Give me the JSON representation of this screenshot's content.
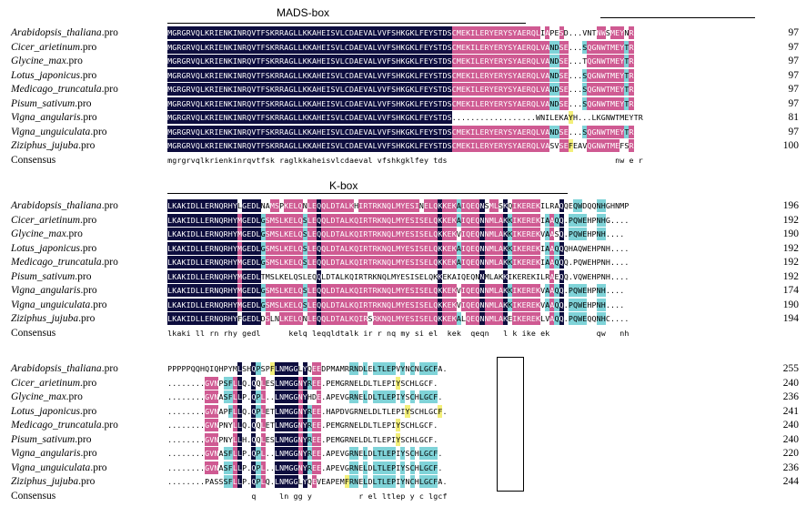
{
  "domains": {
    "mads_label": "MADS-box",
    "k_label": "K-box"
  },
  "consensus_label": "Consensus",
  "blocks": [
    {
      "rows": [
        {
          "name": "Arabidopsis_thaliana",
          "ext": ".pro",
          "seq": "MGRGRVQLKRIENKINRQVTFSKRRAGLLKKAHEISVLCDAEVALVVFSHKGKLFEYSTDSCMEKILERYERYSYAERQLIAPESD...VNTNWSMEYNR",
          "num": "97"
        },
        {
          "name": "Cicer_arietinum",
          "ext": ".pro",
          "seq": "MGRGRVQLKRIENKINRQVTFSKRRAGLLKKAHEISVLCDAEVALVVFSHKGKLFEYSTDSCMEKILERYERYSYAERQLVANDSE...SQGNWTMEYTR",
          "num": "97"
        },
        {
          "name": "Glycine_max",
          "ext": ".pro",
          "seq": "MGRGRVQLKRIENKINRQVTFSKRRAGLLKKAHEISVLCDAEVALVVFSHKGKLFEYSTDSCMEKILERYERYSYAERQLVANDSE...TQGNWTMEYTR",
          "num": "97"
        },
        {
          "name": "Lotus_japonicus",
          "ext": ".pro",
          "seq": "MGRGRVQLKRIENKINRQVTFSKRRAGLLKKAHEISVLCDAEVALVVFSHKGKLFEYSTDSCMEKILERYERYSYAERQLVANDSE...SQGNWTMEYTR",
          "num": "97"
        },
        {
          "name": "Medicago_truncatula",
          "ext": ".pro",
          "seq": "MGRGRVQLKRIENKINRQVTFSKRRAGLLKKAHEISVLCDAEVALVVFSHKGKLFEYSTDSCMEKILERYERYSYAERQLVANDSE...SQGNWTMEYTR",
          "num": "97"
        },
        {
          "name": "Pisum_sativum",
          "ext": ".pro",
          "seq": "MGRGRVQLKRIENKINRQVTFSKRRAGLLKKAHEISVLCDAEVALVVFSHKGKLFEYSTDSCMEKILERYERYSYAERQLVANDSE...SQGNWTMEYTR",
          "num": "97"
        },
        {
          "name": "Vigna_angularis",
          "ext": ".pro",
          "seq": "MGRGRVQLKRIENKINRQVTFSKRRAGLLKKAHEISVLCDAEVALVVFSHKGKLFEYSTDS..................WNILEKAYH...LKGNWTMEYTR",
          "num": "81"
        },
        {
          "name": "Vigna_unguiculata",
          "ext": ".pro",
          "seq": "MGRGRVQLKRIENKINRQVTFSKRRAGLLKKAHEISVLCDAEVALVVFSHKGKLFEYSTDSCMEKILERYERYSYAERQLVANDSE...SQGNWTMEYTR",
          "num": "97"
        },
        {
          "name": "Ziziphus_jujuba",
          "ext": ".pro",
          "seq": "MGRGRVQLKRIENKINRQVTFSKRRAGLLKKAHEISVLCDAEVALVVFSHKGKLFEYSTDSCMEKILERYERYSYAERQLVASVSEFEAVQGNWTMEFSR",
          "num": "100"
        }
      ],
      "consensus": "mgrgrvqlkrienkinrqvtfsk raglkkaheisvlcdaeval vfshkgklfey tds                                    nw e r"
    },
    {
      "rows": [
        {
          "name": "Arabidopsis_thaliana",
          "ext": ".pro",
          "seq": "LKAKIDLLERNQRHYLGEDLNAMSPKELQNLEQQLDTALKHIRTRKNQLMYESINELQKKEKAIQEQNSMLSKQIKEREKILRAQQEQWDQQNHGHNMP",
          "num": "196"
        },
        {
          "name": "Cicer_arietinum",
          "ext": ".pro",
          "seq": "LKAKIDLLERNQRHYMGEDLGSMSLKELQSLEQQLDTALKQIRTRKNQLMYESISELQKKEKAIQEQNNMLAKKIKEREKIAAQQ.PQWEHPNHG....",
          "num": "192"
        },
        {
          "name": "Glycine_max",
          "ext": ".pro",
          "seq": "LKAKIDLLERNQRHYMGEDLGSMSLKELQSLEQQLDTALKQIRTRKNQLMYESISELQKKEKVIQEQNNMLAKKIKEREKVAASQ.PQWEHPNH....",
          "num": "190"
        },
        {
          "name": "Lotus_japonicus",
          "ext": ".pro",
          "seq": "LKAKIDLLERNQRHYMGEDLGSMSLKELQSLEQQLDTALKQIRTRKNQLMYESISELQKKEKAIQEQNNMLAKKIKEREKIAAQQQHAQWEHPNH....",
          "num": "192"
        },
        {
          "name": "Medicago_truncatula",
          "ext": ".pro",
          "seq": "LKAKIDLLERNQRHYMGEDLGSMSLKELQSLEQQLDTALKQIRTRKNQLMYESISELQKKEKAIQEQNNMLAKKIKEREKIAAQQQ.PQWEHPNH....",
          "num": "192"
        },
        {
          "name": "Pisum_sativum",
          "ext": ".pro",
          "seq": "LKAKIDLLERNQRHYMGEDLTMSLKELQSLEQQLDTALKQIRTRKNQLMYESISELQKKEKAIQEQNNMLAKKIKEREKILRAEQQ.VQWEHPNH....",
          "num": "192"
        },
        {
          "name": "Vigna_angularis",
          "ext": ".pro",
          "seq": "LKAKIDLLERNQRHYMGEDLGSMSLKELQSLEQQLDTALKQIRTRKNQLMYESISELQKKEKVIQEQNNMLAKKIKEREKVAAQQ.PQWEHPNH....",
          "num": "174"
        },
        {
          "name": "Vigna_unguiculata",
          "ext": ".pro",
          "seq": "LKAKIDLLERNQRHYMGEDLGSMSLKELQSLEQQLDTALKQIRTRKNQLMYESISELQKKEKVIQEQNNMLAKKIKEREKVAAQQ.PQWEHPNH....",
          "num": "190"
        },
        {
          "name": "Ziziphus_jujuba",
          "ext": ".pro",
          "seq": "LKAKIDLLERNQRHYFGEDLDSLNLKELQNLEQQLDTALKQIRSRKNQLMYESISELQKKEKALQEQNNMLAKEIKEREKLVAQQ.PQWEQQNHC....",
          "num": "194"
        }
      ],
      "consensus": "lkaki ll rn rhy gedl      kelq leqqldtalk ir r nq my si el  kek  qeqn   l k ike ek          qw   nh"
    },
    {
      "rows": [
        {
          "name": "Arabidopsis_thaliana",
          "ext": ".pro",
          "seq": "PPPPPQQHQIQHPYMLSHQPSPFLNMGGLYQEEDPMAMRRNDLELTLEPVYNCNLGCFA.",
          "num": "255"
        },
        {
          "name": "Cicer_arietinum",
          "ext": ".pro",
          "seq": "........GVNPSFLLQ.QQLESLNMGGNYREE.PEMGRNELDLTLEPIYSCHLGCF.",
          "num": "240"
        },
        {
          "name": "Glycine_max",
          "ext": ".pro",
          "seq": "........GVNASFLLP.QPL..LNMGGNYHDE.APEVGRNELDLTLEPIYSCHLGCF.",
          "num": "236"
        },
        {
          "name": "Lotus_japonicus",
          "ext": ".pro",
          "seq": "........GVNAPFLLQ.QPLETLNMGGNYREE.HAPDVGRNELDLTLEPIYSCHLGCF.",
          "num": "241"
        },
        {
          "name": "Medicago_truncatula",
          "ext": ".pro",
          "seq": "........GVNPNYLLQ.QQLETLNMGGNYREE.PEMGRNELDLTLEPIYSCHLGCF.",
          "num": "240"
        },
        {
          "name": "Pisum_sativum",
          "ext": ".pro",
          "seq": "........GVNPNYLLH.QQLESLNMGGNYREE.PEMGRNELDLTLEPIYSCHLGCF.",
          "num": "240"
        },
        {
          "name": "Vigna_angularis",
          "ext": ".pro",
          "seq": "........GVNASFLLP.QPL..LNMGGNYREE.APEVGRNELDLTLEPIYSCHLGCF.",
          "num": "220"
        },
        {
          "name": "Vigna_unguiculata",
          "ext": ".pro",
          "seq": "........GVNASFLLP.QPL..LNMGGNYREE.APEVGRNELDLTLEPIYSCHLGCF.",
          "num": "236"
        },
        {
          "name": "Ziziphus_jujuba",
          "ext": ".pro",
          "seq": "........PASSSFLLP.QPLQ.LNMGGLYQEVEAPEMFRNELDLTLEPIYNCHLGCFA.",
          "num": "244"
        }
      ],
      "consensus": "                  q     ln gg y          r el ltlep y c lgcf"
    }
  ]
}
